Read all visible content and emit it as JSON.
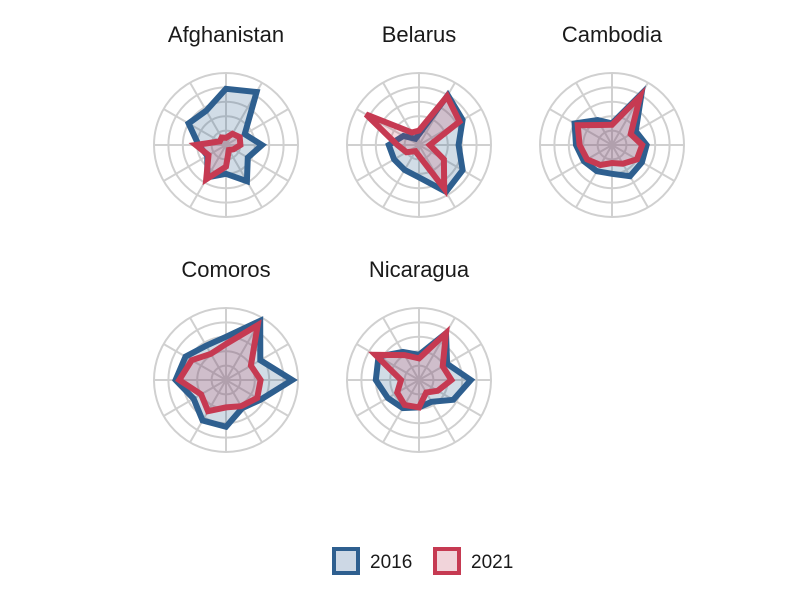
{
  "chart_data": {
    "type": "radar",
    "axes_count": 12,
    "rlim": [
      0,
      1
    ],
    "grid": true,
    "legend_position": "bottom",
    "colors": {
      "2016": "#2e5f8f",
      "2021": "#c63a52"
    },
    "legend": [
      {
        "label": "2016",
        "color": "#2e5f8f",
        "fill": "#cdd8e5"
      },
      {
        "label": "2021",
        "color": "#c63a52",
        "fill": "#f1d4da"
      }
    ],
    "panels": [
      {
        "title": "Afghanistan",
        "series": [
          {
            "name": "2016",
            "values": [
              0.78,
              0.85,
              0.3,
              0.5,
              0.35,
              0.58,
              0.4,
              0.52,
              0.3,
              0.38,
              0.6,
              0.55
            ]
          },
          {
            "name": "2021",
            "values": [
              0.1,
              0.18,
              0.22,
              0.2,
              0.12,
              0.08,
              0.3,
              0.55,
              0.28,
              0.42,
              0.1,
              0.12
            ]
          }
        ]
      },
      {
        "title": "Belarus",
        "series": [
          {
            "name": "2016",
            "values": [
              0.15,
              0.8,
              0.7,
              0.55,
              0.7,
              0.75,
              0.45,
              0.4,
              0.4,
              0.42,
              0.25,
              0.1
            ]
          },
          {
            "name": "2021",
            "values": [
              0.2,
              0.78,
              0.65,
              0.15,
              0.4,
              0.7,
              0.15,
              0.1,
              0.2,
              0.3,
              0.85,
              0.2
            ]
          }
        ]
      },
      {
        "title": "Cambodia",
        "series": [
          {
            "name": "2016",
            "values": [
              0.3,
              0.82,
              0.38,
              0.48,
              0.48,
              0.5,
              0.4,
              0.42,
              0.45,
              0.5,
              0.6,
              0.4
            ]
          },
          {
            "name": "2021",
            "values": [
              0.28,
              0.78,
              0.3,
              0.42,
              0.4,
              0.3,
              0.25,
              0.32,
              0.4,
              0.45,
              0.55,
              0.32
            ]
          }
        ]
      },
      {
        "title": "Comoros",
        "series": [
          {
            "name": "2016",
            "values": [
              0.6,
              0.95,
              0.55,
              0.92,
              0.55,
              0.45,
              0.65,
              0.65,
              0.52,
              0.7,
              0.65,
              0.55
            ]
          },
          {
            "name": "2021",
            "values": [
              0.5,
              0.88,
              0.4,
              0.48,
              0.5,
              0.42,
              0.38,
              0.5,
              0.4,
              0.65,
              0.55,
              0.42
            ]
          }
        ]
      },
      {
        "title": "Nicaragua",
        "series": [
          {
            "name": "2016",
            "values": [
              0.35,
              0.75,
              0.45,
              0.72,
              0.55,
              0.35,
              0.38,
              0.45,
              0.5,
              0.6,
              0.65,
              0.45
            ]
          },
          {
            "name": "2021",
            "values": [
              0.3,
              0.75,
              0.38,
              0.45,
              0.3,
              0.2,
              0.38,
              0.4,
              0.35,
              0.25,
              0.7,
              0.4
            ]
          }
        ]
      }
    ]
  }
}
